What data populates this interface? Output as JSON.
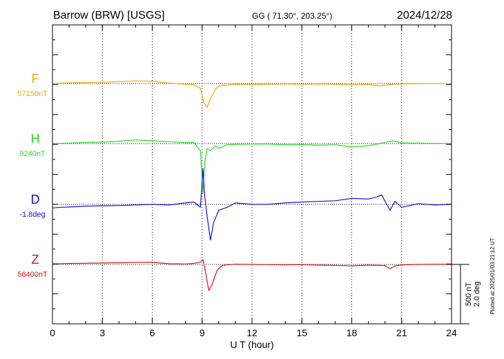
{
  "header": {
    "station": "Barrow (BRW)  [USGS]",
    "coords": "GG ( 71.30°, 203.25°)",
    "date": "2024/12/28"
  },
  "footer_note": "Plotted at 2025/01/03 21:12 UT",
  "scale": {
    "nt": "500 nT",
    "deg": "2.0 deg"
  },
  "chart_data": {
    "type": "line",
    "title": "Barrow (BRW)  [USGS]",
    "xlabel": "U T (hour)",
    "xlim": [
      0,
      24
    ],
    "xticks": [
      "0",
      "3",
      "6",
      "9",
      "12",
      "15",
      "18",
      "21",
      "24"
    ],
    "grid": true,
    "scale_bar": {
      "nT": 500,
      "deg": 2.0
    },
    "series": [
      {
        "name": "F",
        "baseline_label": "57150nT",
        "color": "#f0a800",
        "unit": "nT",
        "x": [
          0,
          1,
          2,
          3,
          4,
          5,
          6,
          7,
          8,
          8.5,
          8.9,
          9.1,
          9.3,
          9.5,
          9.8,
          10,
          10.5,
          11,
          12,
          13,
          14,
          15,
          16,
          17,
          18,
          19,
          19.7,
          20,
          20.5,
          21,
          22,
          23,
          24
        ],
        "values": [
          2,
          6,
          8,
          10,
          16,
          22,
          20,
          4,
          -6,
          -10,
          -40,
          -160,
          -200,
          -130,
          -50,
          -20,
          -12,
          -6,
          -8,
          -6,
          -4,
          -6,
          -4,
          -6,
          -10,
          -8,
          -20,
          -14,
          -6,
          -4,
          -2,
          0,
          0
        ]
      },
      {
        "name": "H",
        "baseline_label": "9240nT",
        "color": "#22dd22",
        "unit": "nT",
        "x": [
          0,
          1,
          2,
          3,
          4,
          5,
          6,
          7,
          8,
          8.5,
          8.9,
          9.05,
          9.15,
          9.3,
          9.5,
          9.8,
          10,
          10.5,
          11,
          12,
          13,
          14,
          15,
          16,
          17,
          18,
          19,
          20,
          20.5,
          21,
          22,
          23,
          24
        ],
        "values": [
          0,
          4,
          10,
          12,
          20,
          30,
          24,
          16,
          8,
          10,
          -60,
          -420,
          -160,
          -40,
          -60,
          -20,
          -40,
          -10,
          -6,
          -4,
          -4,
          -10,
          -8,
          -14,
          -10,
          -28,
          -18,
          10,
          24,
          6,
          4,
          2,
          0
        ]
      },
      {
        "name": "D",
        "baseline_label": "-1.8deg",
        "color": "#1010dd",
        "unit": "deg",
        "x": [
          0,
          0.5,
          1,
          2,
          3,
          4,
          5,
          6,
          7,
          8,
          8.5,
          8.9,
          9.05,
          9.15,
          9.3,
          9.5,
          9.7,
          10,
          10.5,
          11,
          12,
          13,
          14,
          15,
          16,
          17,
          18,
          19,
          19.5,
          19.8,
          20,
          20.3,
          20.6,
          21,
          22,
          23,
          24
        ],
        "values": [
          -0.12,
          -0.1,
          -0.09,
          -0.06,
          -0.05,
          -0.04,
          -0.02,
          0.0,
          -0.02,
          0.05,
          0.08,
          -0.1,
          1.2,
          0.3,
          -0.4,
          -1.2,
          -0.6,
          -0.2,
          -0.1,
          0.05,
          0.0,
          0.0,
          0.05,
          0.08,
          0.1,
          0.12,
          0.2,
          0.18,
          0.25,
          0.32,
          0.1,
          -0.2,
          0.1,
          -0.1,
          0.02,
          -0.02,
          0.0
        ]
      },
      {
        "name": "Z",
        "baseline_label": "56400nT",
        "color": "#dd1010",
        "unit": "nT",
        "x": [
          0,
          1,
          2,
          3,
          4,
          5,
          6,
          7,
          8,
          8.5,
          8.9,
          9.05,
          9.2,
          9.4,
          9.6,
          9.9,
          10.2,
          10.5,
          11,
          12,
          13,
          14,
          15,
          16,
          17,
          18,
          19,
          20,
          20.3,
          20.6,
          21,
          22,
          23,
          24
        ],
        "values": [
          4,
          8,
          10,
          12,
          14,
          16,
          18,
          6,
          4,
          8,
          20,
          40,
          -60,
          -220,
          -170,
          -50,
          -10,
          -4,
          2,
          0,
          -2,
          -4,
          -2,
          -6,
          -8,
          -12,
          -6,
          -10,
          -36,
          -12,
          -4,
          0,
          2,
          0
        ]
      }
    ]
  }
}
